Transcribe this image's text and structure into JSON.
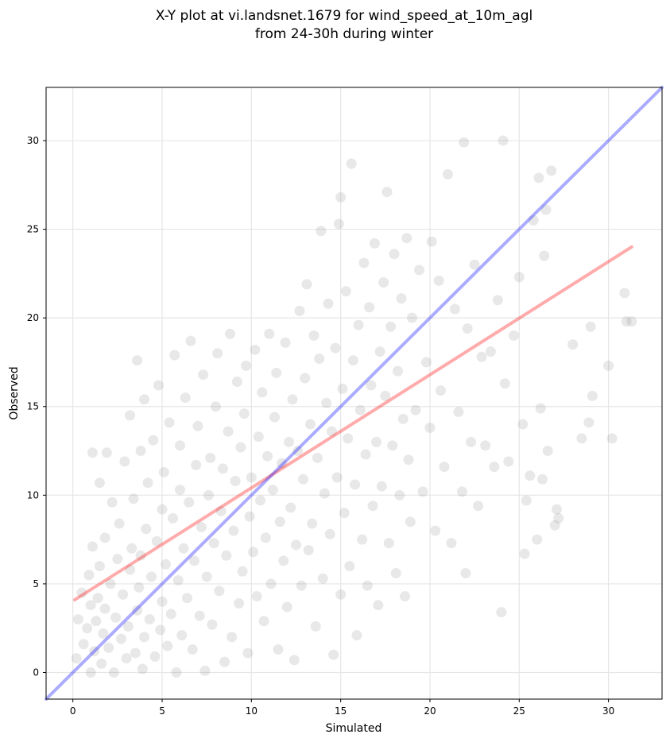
{
  "chart_data": {
    "type": "scatter",
    "title": "X-Y plot at vi.landsnet.1679 for wind_speed_at_10m_agl",
    "subtitle": "from 24-30h during winter",
    "xlabel": "Simulated",
    "ylabel": "Observed",
    "xlim": [
      -1.5,
      33
    ],
    "ylim": [
      -1.5,
      33
    ],
    "xticks": [
      0,
      5,
      10,
      15,
      20,
      25,
      30
    ],
    "yticks": [
      0,
      5,
      10,
      15,
      20,
      25,
      30
    ],
    "grid": true,
    "points_color": "#808080",
    "points": [
      [
        0.2,
        0.8
      ],
      [
        0.3,
        3.0
      ],
      [
        0.5,
        4.5
      ],
      [
        0.6,
        1.6
      ],
      [
        0.8,
        2.5
      ],
      [
        0.9,
        5.5
      ],
      [
        1.0,
        0.0
      ],
      [
        1.0,
        3.8
      ],
      [
        1.1,
        7.1
      ],
      [
        1.1,
        12.4
      ],
      [
        1.2,
        1.2
      ],
      [
        1.3,
        2.9
      ],
      [
        1.4,
        4.2
      ],
      [
        1.5,
        6.0
      ],
      [
        1.5,
        10.7
      ],
      [
        1.6,
        0.5
      ],
      [
        1.7,
        2.2
      ],
      [
        1.8,
        3.6
      ],
      [
        1.8,
        7.6
      ],
      [
        1.9,
        12.4
      ],
      [
        2.0,
        1.4
      ],
      [
        2.1,
        5.0
      ],
      [
        2.2,
        9.6
      ],
      [
        2.3,
        0.0
      ],
      [
        2.4,
        3.1
      ],
      [
        2.5,
        6.4
      ],
      [
        2.6,
        8.4
      ],
      [
        2.7,
        1.9
      ],
      [
        2.8,
        4.4
      ],
      [
        2.9,
        11.9
      ],
      [
        3.0,
        0.8
      ],
      [
        3.1,
        2.6
      ],
      [
        3.2,
        5.8
      ],
      [
        3.2,
        14.5
      ],
      [
        3.3,
        7.0
      ],
      [
        3.4,
        9.8
      ],
      [
        3.5,
        1.1
      ],
      [
        3.6,
        3.5
      ],
      [
        3.6,
        17.6
      ],
      [
        3.7,
        4.8
      ],
      [
        3.8,
        6.6
      ],
      [
        3.8,
        12.5
      ],
      [
        3.9,
        0.2
      ],
      [
        4.0,
        2.0
      ],
      [
        4.0,
        15.4
      ],
      [
        4.1,
        8.1
      ],
      [
        4.2,
        10.7
      ],
      [
        4.3,
        3.0
      ],
      [
        4.4,
        5.4
      ],
      [
        4.5,
        13.1
      ],
      [
        4.6,
        0.9
      ],
      [
        4.7,
        7.4
      ],
      [
        4.8,
        16.2
      ],
      [
        4.9,
        2.4
      ],
      [
        5.0,
        4.0
      ],
      [
        5.0,
        9.2
      ],
      [
        5.1,
        11.3
      ],
      [
        5.2,
        6.1
      ],
      [
        5.3,
        1.5
      ],
      [
        5.4,
        14.1
      ],
      [
        5.5,
        3.3
      ],
      [
        5.6,
        8.7
      ],
      [
        5.7,
        17.9
      ],
      [
        5.8,
        0.0
      ],
      [
        5.9,
        5.2
      ],
      [
        6.0,
        10.3
      ],
      [
        6.0,
        12.8
      ],
      [
        6.1,
        2.1
      ],
      [
        6.2,
        7.0
      ],
      [
        6.3,
        15.5
      ],
      [
        6.4,
        4.2
      ],
      [
        6.5,
        9.6
      ],
      [
        6.6,
        18.7
      ],
      [
        6.7,
        1.3
      ],
      [
        6.8,
        6.3
      ],
      [
        6.9,
        11.7
      ],
      [
        7.0,
        13.9
      ],
      [
        7.1,
        3.2
      ],
      [
        7.2,
        8.2
      ],
      [
        7.3,
        16.8
      ],
      [
        7.4,
        0.1
      ],
      [
        7.5,
        5.4
      ],
      [
        7.6,
        10.0
      ],
      [
        7.7,
        12.1
      ],
      [
        7.8,
        2.7
      ],
      [
        7.9,
        7.3
      ],
      [
        8.0,
        15.0
      ],
      [
        8.1,
        18.0
      ],
      [
        8.2,
        4.6
      ],
      [
        8.3,
        9.1
      ],
      [
        8.4,
        11.5
      ],
      [
        8.5,
        0.6
      ],
      [
        8.6,
        6.6
      ],
      [
        8.7,
        13.6
      ],
      [
        8.8,
        19.1
      ],
      [
        8.9,
        2.0
      ],
      [
        9.0,
        8.0
      ],
      [
        9.1,
        10.8
      ],
      [
        9.2,
        16.4
      ],
      [
        9.3,
        3.9
      ],
      [
        9.4,
        12.7
      ],
      [
        9.5,
        5.7
      ],
      [
        9.6,
        14.6
      ],
      [
        9.7,
        17.3
      ],
      [
        9.8,
        1.1
      ],
      [
        9.9,
        8.8
      ],
      [
        10.0,
        11.0
      ],
      [
        10.1,
        6.8
      ],
      [
        10.2,
        18.2
      ],
      [
        10.3,
        4.3
      ],
      [
        10.4,
        13.3
      ],
      [
        10.5,
        9.7
      ],
      [
        10.6,
        15.8
      ],
      [
        10.7,
        2.9
      ],
      [
        10.8,
        7.6
      ],
      [
        10.9,
        12.2
      ],
      [
        11.0,
        19.1
      ],
      [
        11.1,
        5.0
      ],
      [
        11.2,
        10.3
      ],
      [
        11.3,
        14.4
      ],
      [
        11.4,
        16.9
      ],
      [
        11.5,
        1.3
      ],
      [
        11.6,
        8.5
      ],
      [
        11.7,
        11.8
      ],
      [
        11.8,
        6.3
      ],
      [
        11.9,
        18.6
      ],
      [
        12.0,
        3.7
      ],
      [
        12.1,
        13.0
      ],
      [
        12.2,
        9.3
      ],
      [
        12.3,
        15.4
      ],
      [
        12.4,
        0.7
      ],
      [
        12.5,
        7.2
      ],
      [
        12.6,
        12.5
      ],
      [
        12.7,
        20.4
      ],
      [
        12.8,
        4.9
      ],
      [
        12.9,
        10.9
      ],
      [
        13.0,
        16.6
      ],
      [
        13.1,
        21.9
      ],
      [
        13.2,
        6.9
      ],
      [
        13.3,
        14.0
      ],
      [
        13.4,
        8.4
      ],
      [
        13.5,
        19.0
      ],
      [
        13.6,
        2.6
      ],
      [
        13.7,
        12.1
      ],
      [
        13.8,
        17.7
      ],
      [
        13.9,
        24.9
      ],
      [
        14.0,
        5.3
      ],
      [
        14.1,
        10.1
      ],
      [
        14.2,
        15.2
      ],
      [
        14.3,
        20.8
      ],
      [
        14.4,
        7.8
      ],
      [
        14.5,
        13.6
      ],
      [
        14.6,
        1.0
      ],
      [
        14.7,
        18.3
      ],
      [
        14.8,
        11.0
      ],
      [
        14.9,
        25.3
      ],
      [
        15.0,
        4.4
      ],
      [
        15.0,
        26.8
      ],
      [
        15.1,
        16.0
      ],
      [
        15.2,
        9.0
      ],
      [
        15.3,
        21.5
      ],
      [
        15.4,
        13.2
      ],
      [
        15.5,
        6.0
      ],
      [
        15.6,
        28.7
      ],
      [
        15.7,
        17.6
      ],
      [
        15.8,
        10.6
      ],
      [
        15.9,
        2.1
      ],
      [
        16.0,
        19.6
      ],
      [
        16.1,
        14.8
      ],
      [
        16.2,
        7.5
      ],
      [
        16.3,
        23.1
      ],
      [
        16.4,
        12.3
      ],
      [
        16.5,
        4.9
      ],
      [
        16.6,
        20.6
      ],
      [
        16.7,
        16.2
      ],
      [
        16.8,
        9.4
      ],
      [
        16.9,
        24.2
      ],
      [
        17.0,
        13.0
      ],
      [
        17.1,
        3.8
      ],
      [
        17.2,
        18.1
      ],
      [
        17.3,
        10.5
      ],
      [
        17.4,
        22.0
      ],
      [
        17.5,
        15.6
      ],
      [
        17.6,
        27.1
      ],
      [
        17.7,
        7.3
      ],
      [
        17.8,
        19.5
      ],
      [
        17.9,
        12.8
      ],
      [
        18.0,
        23.6
      ],
      [
        18.1,
        5.6
      ],
      [
        18.2,
        17.0
      ],
      [
        18.3,
        10.0
      ],
      [
        18.4,
        21.1
      ],
      [
        18.5,
        14.3
      ],
      [
        18.6,
        4.3
      ],
      [
        18.7,
        24.5
      ],
      [
        18.8,
        12.0
      ],
      [
        18.9,
        8.5
      ],
      [
        19.0,
        20.0
      ],
      [
        19.2,
        14.8
      ],
      [
        19.4,
        22.7
      ],
      [
        19.6,
        10.2
      ],
      [
        19.8,
        17.5
      ],
      [
        20.0,
        13.8
      ],
      [
        20.1,
        24.3
      ],
      [
        20.3,
        8.0
      ],
      [
        20.5,
        22.1
      ],
      [
        20.6,
        15.9
      ],
      [
        20.8,
        11.6
      ],
      [
        21.0,
        28.1
      ],
      [
        21.2,
        7.3
      ],
      [
        21.4,
        20.5
      ],
      [
        21.6,
        14.7
      ],
      [
        21.8,
        10.2
      ],
      [
        21.9,
        29.9
      ],
      [
        22.0,
        5.6
      ],
      [
        22.1,
        19.4
      ],
      [
        22.3,
        13.0
      ],
      [
        22.5,
        23.0
      ],
      [
        22.7,
        9.4
      ],
      [
        22.9,
        17.8
      ],
      [
        23.1,
        12.8
      ],
      [
        23.4,
        18.1
      ],
      [
        23.6,
        11.6
      ],
      [
        23.8,
        21.0
      ],
      [
        24.0,
        3.4
      ],
      [
        24.1,
        30.0
      ],
      [
        24.2,
        16.3
      ],
      [
        24.4,
        11.9
      ],
      [
        24.7,
        19.0
      ],
      [
        25.0,
        22.3
      ],
      [
        25.2,
        14.0
      ],
      [
        25.3,
        6.7
      ],
      [
        25.4,
        9.7
      ],
      [
        25.6,
        11.1
      ],
      [
        25.8,
        25.5
      ],
      [
        26.0,
        7.5
      ],
      [
        26.1,
        27.9
      ],
      [
        26.2,
        14.9
      ],
      [
        26.3,
        10.9
      ],
      [
        26.4,
        23.5
      ],
      [
        26.5,
        26.1
      ],
      [
        26.6,
        12.5
      ],
      [
        26.8,
        28.3
      ],
      [
        27.0,
        8.3
      ],
      [
        27.1,
        9.2
      ],
      [
        27.2,
        8.7
      ],
      [
        28.0,
        18.5
      ],
      [
        28.5,
        13.2
      ],
      [
        28.9,
        14.1
      ],
      [
        29.1,
        15.6
      ],
      [
        29.0,
        19.5
      ],
      [
        30.0,
        17.3
      ],
      [
        30.2,
        13.2
      ],
      [
        30.9,
        21.4
      ],
      [
        31.0,
        19.8
      ],
      [
        31.3,
        19.8
      ]
    ],
    "series": [
      {
        "type": "line",
        "color": "#ff0000",
        "x": [
          0.1,
          31.3
        ],
        "y": [
          4.1,
          24.0
        ]
      },
      {
        "type": "line",
        "color": "#0000ff",
        "x": [
          -1.5,
          33
        ],
        "y": [
          -1.5,
          33
        ]
      }
    ]
  }
}
